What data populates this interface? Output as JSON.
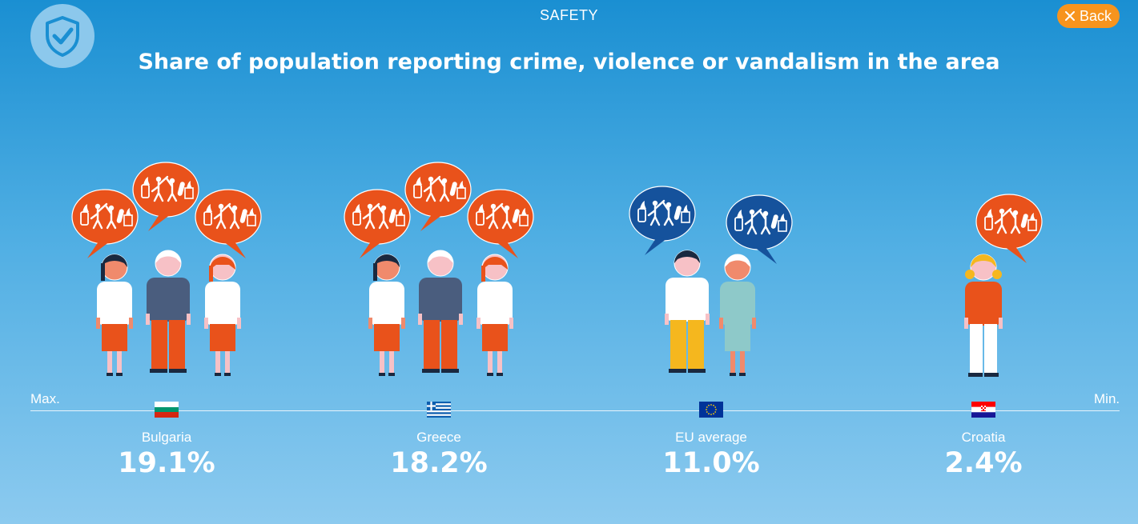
{
  "header": {
    "section": "SAFETY",
    "back_label": "Back",
    "badge_icon": "shield-check-icon"
  },
  "chart_data": {
    "type": "pictogram",
    "title": "Share of population reporting crime, violence or vandalism in the area",
    "axis": {
      "left_label": "Max.",
      "right_label": "Min."
    },
    "categories": [
      "Bulgaria",
      "Greece",
      "EU average",
      "Croatia"
    ],
    "values": [
      19.1,
      18.2,
      11.0,
      2.4
    ],
    "value_labels": [
      "19.1%",
      "18.2%",
      "11.0%",
      "2.4%"
    ],
    "flags": [
      "bulgaria-flag-icon",
      "greece-flag-icon",
      "eu-flag-icon",
      "croatia-flag-icon"
    ],
    "people_counts": [
      3,
      3,
      2,
      1
    ],
    "colors": {
      "bubble_country": "#e9521b",
      "bubble_eu": "#15529c"
    }
  }
}
